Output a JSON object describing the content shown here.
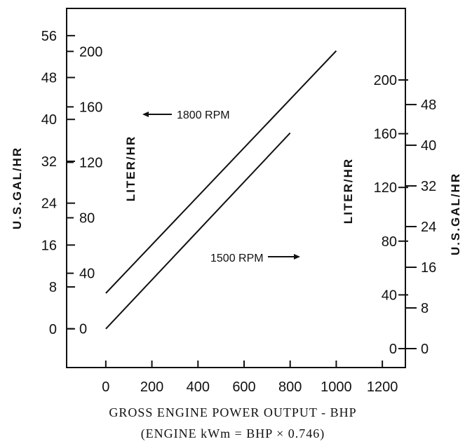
{
  "chart_data": {
    "type": "line",
    "xlabel": "GROSS ENGINE POWER OUTPUT - BHP",
    "xlabel_sub": "(ENGINE kWm = BHP × 0.746)",
    "x_ticks": [
      "0",
      "200",
      "400",
      "600",
      "800",
      "1000",
      "1200"
    ],
    "xlim": [
      -170,
      1300
    ],
    "left_outer_axis": {
      "label": "U.S.GAL/HR",
      "ticks": [
        "0",
        "8",
        "16",
        "24",
        "32",
        "40",
        "48",
        "56"
      ],
      "ylim": [
        -7.4,
        61.2
      ]
    },
    "left_inner_axis": {
      "label": "LITER/HR",
      "ticks": [
        "0",
        "40",
        "80",
        "120",
        "160",
        "200"
      ],
      "ylim": [
        -28,
        231
      ]
    },
    "right_inner_axis": {
      "label": "LITER/HR",
      "ticks": [
        "0",
        "40",
        "80",
        "120",
        "160",
        "200"
      ]
    },
    "right_outer_axis": {
      "label": "U.S.GAL/HR",
      "ticks": [
        "0",
        "8",
        "16",
        "24",
        "32",
        "40",
        "48"
      ]
    },
    "series": [
      {
        "name": "1800 RPM",
        "x": [
          0,
          1000
        ],
        "y": [
          6.8,
          53.1
        ]
      },
      {
        "name": "1500 RPM",
        "x": [
          0,
          800
        ],
        "y": [
          0,
          37.4
        ]
      }
    ],
    "annotations": [
      "1800 RPM",
      "1500 RPM"
    ]
  }
}
